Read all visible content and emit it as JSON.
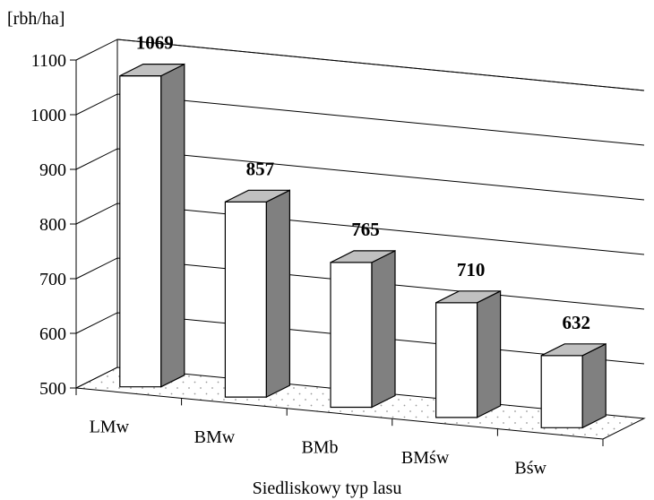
{
  "chart_data": {
    "type": "bar",
    "title": "",
    "ylabel": "[rbh/ha]",
    "xlabel": "Siedliskowy typ lasu",
    "ylim": [
      500,
      1100
    ],
    "yticks": [
      "500",
      "600",
      "700",
      "800",
      "900",
      "1000",
      "1100"
    ],
    "categories": [
      "LMw",
      "BMw",
      "BMb",
      "BMśw",
      "Bśw"
    ],
    "values": [
      1069,
      857,
      765,
      710,
      632
    ],
    "value_labels": [
      "1069",
      "857",
      "765",
      "710",
      "632"
    ],
    "style": "3d-column",
    "gridlines": true,
    "floor_pattern": "dotted",
    "colors": {
      "bar_front": "#ffffff",
      "bar_side": "#808080",
      "bar_top": "#c0c0c0",
      "outline": "#000000",
      "floor_dots": "#9a9a9a"
    }
  }
}
